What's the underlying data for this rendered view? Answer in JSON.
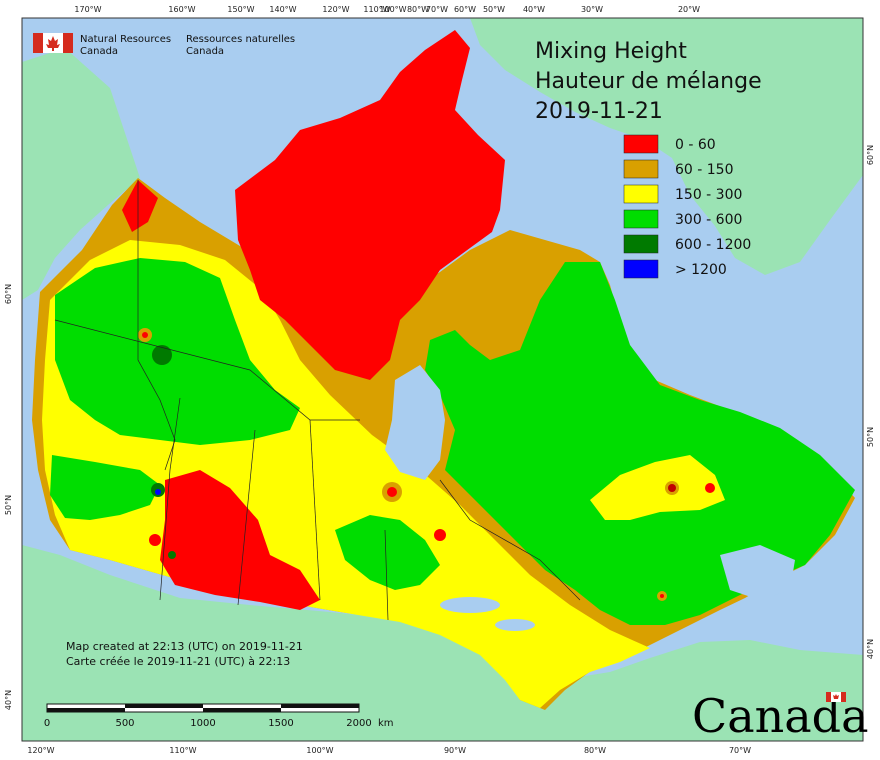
{
  "header": {
    "agency_en_line1": "Natural Resources",
    "agency_en_line2": "Canada",
    "agency_fr_line1": "Ressources naturelles",
    "agency_fr_line2": "Canada"
  },
  "title": {
    "line1": "Mixing Height",
    "line2": "Hauteur de mélange",
    "date": "2019-11-21"
  },
  "legend": [
    {
      "label": "0 - 60",
      "color": "#ff0000"
    },
    {
      "label": "60 - 150",
      "color": "#d9a000"
    },
    {
      "label": "150 - 300",
      "color": "#ffff00"
    },
    {
      "label": "300 - 600",
      "color": "#00dd00"
    },
    {
      "label": "600 - 1200",
      "color": "#007a00"
    },
    {
      "label": "> 1200",
      "color": "#0000ff"
    }
  ],
  "top_ticks": [
    "170°W",
    "160°W",
    "150°W",
    "140°W",
    "120°W",
    "110°W",
    "100°W",
    "80°W",
    "70°W",
    "60°W",
    "50°W",
    "40°W",
    "30°W",
    "20°W"
  ],
  "bottom_ticks": [
    "120°W",
    "110°W",
    "100°W",
    "90°W",
    "80°W",
    "70°W"
  ],
  "left_ticks": [
    "60°N",
    "50°N",
    "40°N"
  ],
  "right_ticks": [
    "60°N",
    "50°N",
    "40°N"
  ],
  "credits": {
    "en": "Map created at 22:13 (UTC) on 2019-11-21",
    "fr": "Carte créée le 2019-11-21 (UTC) à 22:13"
  },
  "scale_bar": {
    "labels": [
      "0",
      "500",
      "1000",
      "1500",
      "2000"
    ],
    "unit": "km"
  },
  "wordmark": "Canada",
  "colors": {
    "ocean": "#a9cdf0",
    "foreign_land": "#9be3b4",
    "lakes": "#a9cdf0"
  }
}
